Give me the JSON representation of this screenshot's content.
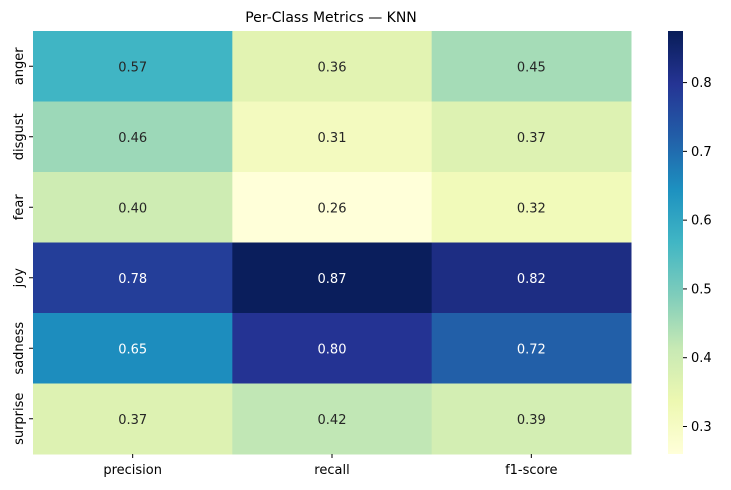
{
  "chart_data": {
    "type": "heatmap",
    "title": "Per-Class Metrics — KNN",
    "rows": [
      "anger",
      "disgust",
      "fear",
      "joy",
      "sadness",
      "surprise"
    ],
    "columns": [
      "precision",
      "recall",
      "f1-score"
    ],
    "values": [
      [
        0.57,
        0.36,
        0.45
      ],
      [
        0.46,
        0.31,
        0.37
      ],
      [
        0.4,
        0.26,
        0.32
      ],
      [
        0.78,
        0.87,
        0.82
      ],
      [
        0.65,
        0.8,
        0.72
      ],
      [
        0.37,
        0.42,
        0.39
      ]
    ],
    "labels": [
      [
        "0.57",
        "0.36",
        "0.45"
      ],
      [
        "0.46",
        "0.31",
        "0.37"
      ],
      [
        "0.40",
        "0.26",
        "0.32"
      ],
      [
        "0.78",
        "0.87",
        "0.82"
      ],
      [
        "0.65",
        "0.80",
        "0.72"
      ],
      [
        "0.37",
        "0.42",
        "0.39"
      ]
    ],
    "colormap": "YlGnBu",
    "vmin": 0.26,
    "vmax": 0.875,
    "colorbar_ticks": [
      "0.3",
      "0.4",
      "0.5",
      "0.6",
      "0.7",
      "0.8"
    ],
    "colorbar_tick_values": [
      0.3,
      0.4,
      0.5,
      0.6,
      0.7,
      0.8
    ]
  }
}
